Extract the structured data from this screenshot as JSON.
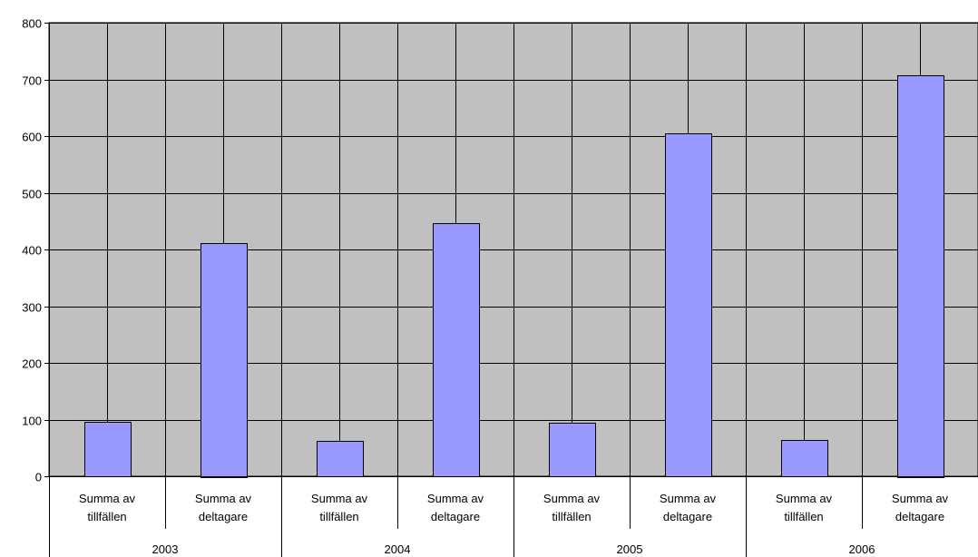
{
  "chart_data": {
    "type": "bar",
    "groups": [
      "2003",
      "2004",
      "2005",
      "2006"
    ],
    "sub_categories": [
      {
        "line1": "Summa av",
        "line2": "tillfällen"
      },
      {
        "line1": "Summa av",
        "line2": "deltagare"
      }
    ],
    "values": [
      [
        96,
        412
      ],
      [
        62,
        447
      ],
      [
        94,
        605
      ],
      [
        64,
        708
      ]
    ],
    "ylim": [
      0,
      800
    ],
    "y_ticks": [
      "0",
      "100",
      "200",
      "300",
      "400",
      "500",
      "600",
      "700",
      "800"
    ],
    "grid": true,
    "legend": "none",
    "colors": {
      "plot_background": "#c0c0c0",
      "bar_fill": "#9999ff",
      "bar_stroke": "#000000",
      "gridline": "#000000"
    }
  }
}
